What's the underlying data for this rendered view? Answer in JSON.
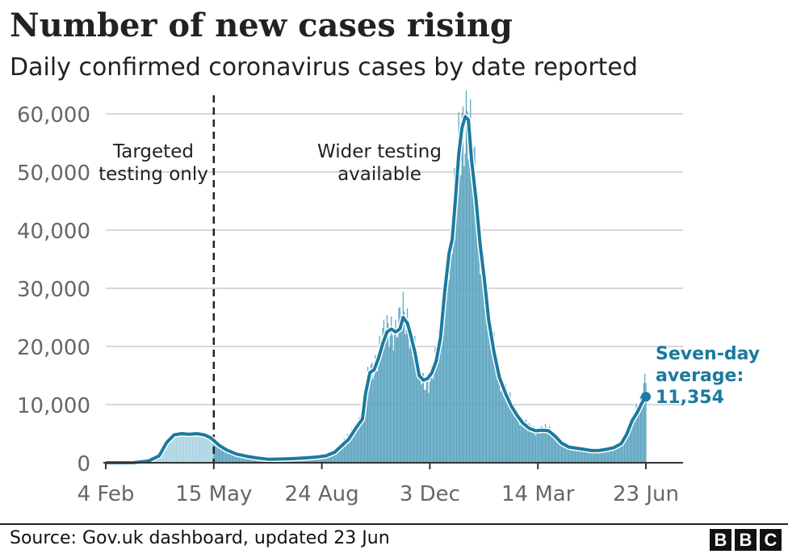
{
  "header": {
    "title": "Number of new cases rising",
    "subtitle": "Daily confirmed coronavirus cases by date reported"
  },
  "footer": {
    "source": "Source: Gov.uk dashboard, updated 23 Jun",
    "logo_letters": [
      "B",
      "B",
      "C"
    ]
  },
  "colors": {
    "bars_before_divider": "#a9d3e2",
    "bars_after_divider": "#5aa4c0",
    "average_line": "#1b7a9e",
    "grid": "#cccccc",
    "axis_text": "#666666"
  },
  "chart_data": {
    "type": "bar",
    "title": "Number of new cases rising",
    "subtitle": "Daily confirmed coronavirus cases by date reported",
    "xlabel": "",
    "ylabel": "",
    "x_range": [
      "2020-02-04",
      "2021-06-23"
    ],
    "ylim": [
      0,
      65000
    ],
    "y_ticks": [
      0,
      10000,
      20000,
      30000,
      40000,
      50000,
      60000
    ],
    "y_tick_labels": [
      "0",
      "10,000",
      "20,000",
      "30,000",
      "40,000",
      "50,000",
      "60,000"
    ],
    "x_ticks": [
      "2020-02-04",
      "2020-05-15",
      "2020-08-24",
      "2020-12-03",
      "2021-03-14",
      "2021-06-23"
    ],
    "x_tick_labels": [
      "4 Feb",
      "15 May",
      "24 Aug",
      "3 Dec",
      "14 Mar",
      "23 Jun"
    ],
    "grid": true,
    "divider_date": "2020-05-15",
    "annotations": [
      {
        "id": "targeted",
        "lines": [
          "Targeted",
          "testing only"
        ]
      },
      {
        "id": "wider",
        "lines": [
          "Wider testing",
          "available"
        ]
      }
    ],
    "series": [
      {
        "kind": "daily_bars",
        "points": [
          [
            "2020-02-04",
            0
          ],
          [
            "2020-03-01",
            20
          ],
          [
            "2020-03-15",
            300
          ],
          [
            "2020-03-25",
            1500
          ],
          [
            "2020-04-01",
            4000
          ],
          [
            "2020-04-08",
            5000
          ],
          [
            "2020-04-15",
            5200
          ],
          [
            "2020-04-22",
            5000
          ],
          [
            "2020-04-29",
            5100
          ],
          [
            "2020-05-06",
            4800
          ],
          [
            "2020-05-12",
            4400
          ],
          [
            "2020-05-20",
            3000
          ],
          [
            "2020-05-27",
            2200
          ],
          [
            "2020-06-05",
            1600
          ],
          [
            "2020-06-15",
            1200
          ],
          [
            "2020-06-25",
            900
          ],
          [
            "2020-07-05",
            650
          ],
          [
            "2020-07-20",
            700
          ],
          [
            "2020-08-01",
            800
          ],
          [
            "2020-08-10",
            900
          ],
          [
            "2020-08-20",
            1100
          ],
          [
            "2020-08-28",
            1300
          ],
          [
            "2020-09-05",
            1900
          ],
          [
            "2020-09-12",
            3300
          ],
          [
            "2020-09-18",
            4500
          ],
          [
            "2020-09-25",
            6500
          ],
          [
            "2020-10-01",
            8000
          ],
          [
            "2020-10-04",
            13000
          ],
          [
            "2020-10-08",
            16000
          ],
          [
            "2020-10-12",
            17000
          ],
          [
            "2020-10-16",
            18500
          ],
          [
            "2020-10-20",
            21000
          ],
          [
            "2020-10-24",
            23000
          ],
          [
            "2020-10-28",
            23500
          ],
          [
            "2020-11-01",
            22500
          ],
          [
            "2020-11-05",
            24000
          ],
          [
            "2020-11-08",
            25500
          ],
          [
            "2020-11-12",
            24500
          ],
          [
            "2020-11-15",
            22500
          ],
          [
            "2020-11-19",
            19500
          ],
          [
            "2020-11-23",
            15000
          ],
          [
            "2020-11-27",
            14000
          ],
          [
            "2020-12-01",
            14000
          ],
          [
            "2020-12-05",
            15500
          ],
          [
            "2020-12-09",
            18000
          ],
          [
            "2020-12-13",
            22000
          ],
          [
            "2020-12-17",
            30000
          ],
          [
            "2020-12-21",
            36000
          ],
          [
            "2020-12-24",
            39000
          ],
          [
            "2020-12-27",
            46000
          ],
          [
            "2020-12-30",
            53000
          ],
          [
            "2021-01-02",
            58000
          ],
          [
            "2021-01-05",
            60000
          ],
          [
            "2021-01-08",
            60000
          ],
          [
            "2021-01-11",
            52000
          ],
          [
            "2021-01-15",
            46000
          ],
          [
            "2021-01-19",
            38000
          ],
          [
            "2021-01-23",
            32000
          ],
          [
            "2021-01-27",
            25000
          ],
          [
            "2021-02-01",
            19500
          ],
          [
            "2021-02-06",
            15000
          ],
          [
            "2021-02-12",
            12000
          ],
          [
            "2021-02-17",
            10000
          ],
          [
            "2021-02-22",
            8500
          ],
          [
            "2021-02-28",
            7000
          ],
          [
            "2021-03-06",
            6000
          ],
          [
            "2021-03-12",
            5600
          ],
          [
            "2021-03-18",
            5800
          ],
          [
            "2021-03-24",
            5700
          ],
          [
            "2021-03-30",
            4700
          ],
          [
            "2021-04-05",
            3500
          ],
          [
            "2021-04-12",
            2800
          ],
          [
            "2021-04-19",
            2600
          ],
          [
            "2021-04-26",
            2400
          ],
          [
            "2021-05-03",
            2200
          ],
          [
            "2021-05-10",
            2200
          ],
          [
            "2021-05-17",
            2400
          ],
          [
            "2021-05-24",
            2700
          ],
          [
            "2021-05-31",
            3400
          ],
          [
            "2021-06-05",
            5000
          ],
          [
            "2021-06-10",
            7500
          ],
          [
            "2021-06-15",
            9000
          ],
          [
            "2021-06-19",
            10500
          ],
          [
            "2021-06-23",
            16000
          ]
        ]
      },
      {
        "kind": "seven_day_average",
        "name": "Seven-day average",
        "points": [
          [
            "2020-02-04",
            0
          ],
          [
            "2020-03-01",
            20
          ],
          [
            "2020-03-15",
            300
          ],
          [
            "2020-03-25",
            1200
          ],
          [
            "2020-04-01",
            3500
          ],
          [
            "2020-04-08",
            4800
          ],
          [
            "2020-04-15",
            5000
          ],
          [
            "2020-04-22",
            4900
          ],
          [
            "2020-04-29",
            5000
          ],
          [
            "2020-05-06",
            4800
          ],
          [
            "2020-05-12",
            4300
          ],
          [
            "2020-05-20",
            3000
          ],
          [
            "2020-05-27",
            2200
          ],
          [
            "2020-06-05",
            1500
          ],
          [
            "2020-06-15",
            1100
          ],
          [
            "2020-06-25",
            800
          ],
          [
            "2020-07-05",
            600
          ],
          [
            "2020-07-20",
            650
          ],
          [
            "2020-08-01",
            750
          ],
          [
            "2020-08-10",
            850
          ],
          [
            "2020-08-20",
            1000
          ],
          [
            "2020-08-28",
            1200
          ],
          [
            "2020-09-05",
            1800
          ],
          [
            "2020-09-12",
            3000
          ],
          [
            "2020-09-18",
            4000
          ],
          [
            "2020-09-25",
            6000
          ],
          [
            "2020-10-01",
            7500
          ],
          [
            "2020-10-04",
            12000
          ],
          [
            "2020-10-08",
            15500
          ],
          [
            "2020-10-12",
            16000
          ],
          [
            "2020-10-16",
            18000
          ],
          [
            "2020-10-20",
            20500
          ],
          [
            "2020-10-24",
            22500
          ],
          [
            "2020-10-28",
            23000
          ],
          [
            "2020-11-01",
            22500
          ],
          [
            "2020-11-05",
            23000
          ],
          [
            "2020-11-08",
            25000
          ],
          [
            "2020-11-12",
            24000
          ],
          [
            "2020-11-15",
            22000
          ],
          [
            "2020-11-19",
            19000
          ],
          [
            "2020-11-23",
            15000
          ],
          [
            "2020-11-27",
            14200
          ],
          [
            "2020-12-01",
            14500
          ],
          [
            "2020-12-05",
            15500
          ],
          [
            "2020-12-09",
            17500
          ],
          [
            "2020-12-13",
            21500
          ],
          [
            "2020-12-17",
            29500
          ],
          [
            "2020-12-21",
            36000
          ],
          [
            "2020-12-24",
            38500
          ],
          [
            "2020-12-27",
            45500
          ],
          [
            "2020-12-30",
            53000
          ],
          [
            "2021-01-02",
            57500
          ],
          [
            "2021-01-05",
            59500
          ],
          [
            "2021-01-08",
            59000
          ],
          [
            "2021-01-11",
            52000
          ],
          [
            "2021-01-15",
            45500
          ],
          [
            "2021-01-19",
            37500
          ],
          [
            "2021-01-23",
            31500
          ],
          [
            "2021-01-27",
            24500
          ],
          [
            "2021-02-01",
            19000
          ],
          [
            "2021-02-06",
            14700
          ],
          [
            "2021-02-12",
            11800
          ],
          [
            "2021-02-17",
            9800
          ],
          [
            "2021-02-22",
            8300
          ],
          [
            "2021-02-28",
            6800
          ],
          [
            "2021-03-06",
            5900
          ],
          [
            "2021-03-12",
            5500
          ],
          [
            "2021-03-18",
            5600
          ],
          [
            "2021-03-24",
            5500
          ],
          [
            "2021-03-30",
            4600
          ],
          [
            "2021-04-05",
            3400
          ],
          [
            "2021-04-12",
            2700
          ],
          [
            "2021-04-19",
            2500
          ],
          [
            "2021-04-26",
            2300
          ],
          [
            "2021-05-03",
            2100
          ],
          [
            "2021-05-10",
            2100
          ],
          [
            "2021-05-17",
            2300
          ],
          [
            "2021-05-24",
            2600
          ],
          [
            "2021-05-31",
            3300
          ],
          [
            "2021-06-05",
            4900
          ],
          [
            "2021-06-10",
            7200
          ],
          [
            "2021-06-15",
            8700
          ],
          [
            "2021-06-19",
            10200
          ],
          [
            "2021-06-23",
            11354
          ]
        ],
        "end_label": [
          "Seven-day",
          "average:",
          "11,354"
        ]
      }
    ]
  }
}
